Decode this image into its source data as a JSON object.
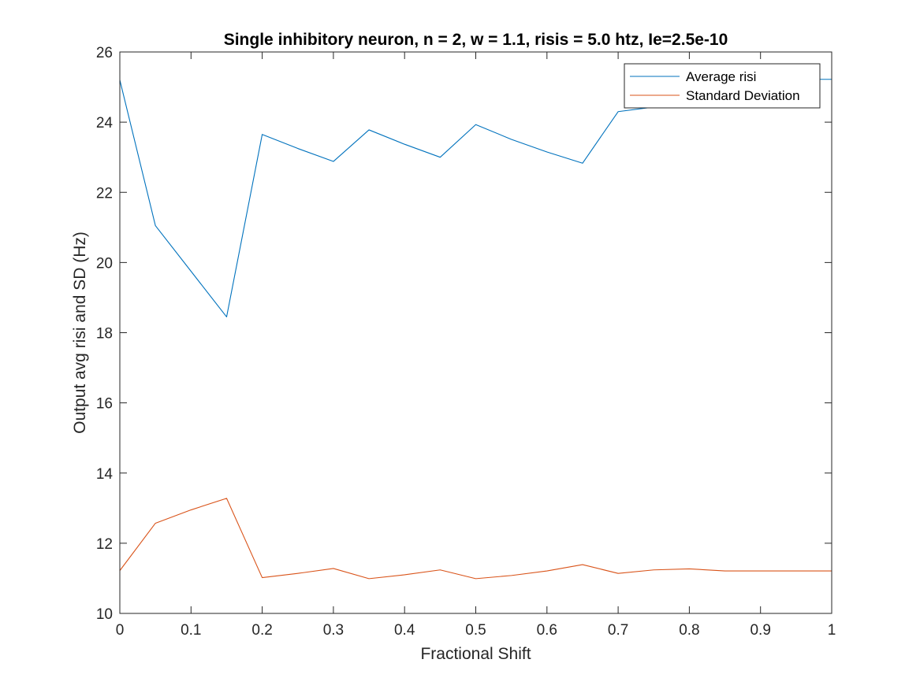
{
  "chart_data": {
    "type": "line",
    "title": "Single inhibitory neuron, n = 2, w = 1.1, risis = 5.0 htz, Ie=2.5e-10",
    "xlabel": "Fractional Shift",
    "ylabel": "Output avg risi and SD (Hz)",
    "xlim": [
      0,
      1
    ],
    "ylim": [
      10,
      26
    ],
    "xticks": [
      0,
      0.1,
      0.2,
      0.3,
      0.4,
      0.5,
      0.6,
      0.7,
      0.8,
      0.9,
      1
    ],
    "xtick_labels": [
      "0",
      "0.1",
      "0.2",
      "0.3",
      "0.4",
      "0.5",
      "0.6",
      "0.7",
      "0.8",
      "0.9",
      "1"
    ],
    "yticks": [
      10,
      12,
      14,
      16,
      18,
      20,
      22,
      24,
      26
    ],
    "ytick_labels": [
      "10",
      "12",
      "14",
      "16",
      "18",
      "20",
      "22",
      "24",
      "26"
    ],
    "grid": false,
    "legend_position": "top-right",
    "x": [
      0,
      0.05,
      0.1,
      0.15,
      0.2,
      0.25,
      0.3,
      0.35,
      0.4,
      0.45,
      0.5,
      0.55,
      0.6,
      0.65,
      0.7,
      0.75,
      0.8,
      0.85,
      0.9,
      0.95,
      1
    ],
    "series": [
      {
        "name": "Average risi",
        "color": "#0072BD",
        "values": [
          25.2,
          21.05,
          19.75,
          18.45,
          23.65,
          23.25,
          22.88,
          23.78,
          23.37,
          23.0,
          23.93,
          23.51,
          23.15,
          22.83,
          24.3,
          24.43,
          24.6,
          25.0,
          25.2,
          25.22,
          25.22
        ]
      },
      {
        "name": "Standard Deviation",
        "color": "#D95319",
        "values": [
          11.22,
          12.57,
          12.95,
          13.28,
          11.02,
          11.14,
          11.28,
          10.99,
          11.1,
          11.24,
          10.99,
          11.08,
          11.21,
          11.39,
          11.14,
          11.24,
          11.27,
          11.21,
          11.21,
          11.21,
          11.21
        ]
      }
    ]
  }
}
